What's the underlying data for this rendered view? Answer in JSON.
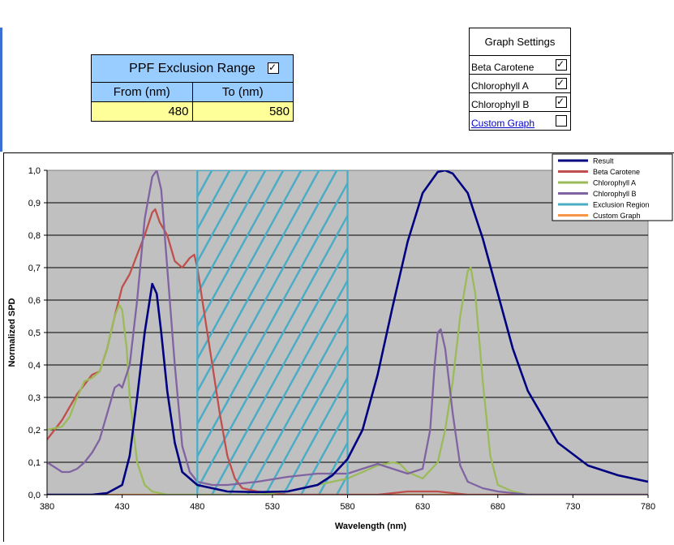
{
  "ppf": {
    "title": "PPF Exclusion Range",
    "enabled": true,
    "from_label": "From (nm)",
    "to_label": "To (nm)",
    "from_value": "480",
    "to_value": "580"
  },
  "graph_settings": {
    "title": "Graph Settings",
    "items": [
      {
        "label": "Beta Carotene",
        "checked": true
      },
      {
        "label": "Chlorophyll A",
        "checked": true
      },
      {
        "label": "Chlorophyll B",
        "checked": true
      },
      {
        "label": "Custom Graph",
        "checked": false
      }
    ]
  },
  "chart_data": {
    "type": "line",
    "xlabel": "Wavelength (nm)",
    "ylabel": "Normalized SPD",
    "xlim": [
      380,
      780
    ],
    "ylim": [
      0,
      1
    ],
    "xticks": [
      "380",
      "430",
      "480",
      "530",
      "580",
      "630",
      "680",
      "730",
      "780"
    ],
    "yticks": [
      "0,0",
      "0,1",
      "0,2",
      "0,3",
      "0,4",
      "0,5",
      "0,6",
      "0,7",
      "0,8",
      "0,9",
      "1,0"
    ],
    "grid": true,
    "legend_position": "top-right",
    "exclusion_range": [
      480,
      580
    ],
    "series": [
      {
        "name": "Result",
        "color": "#000080",
        "x": [
          380,
          410,
          420,
          430,
          435,
          440,
          445,
          450,
          453,
          456,
          460,
          465,
          470,
          480,
          490,
          500,
          520,
          540,
          560,
          570,
          580,
          590,
          600,
          610,
          620,
          630,
          640,
          645,
          650,
          660,
          670,
          680,
          690,
          700,
          720,
          740,
          760,
          780
        ],
        "y": [
          0,
          0,
          0.005,
          0.03,
          0.12,
          0.3,
          0.5,
          0.65,
          0.62,
          0.5,
          0.32,
          0.16,
          0.07,
          0.03,
          0.02,
          0.01,
          0.008,
          0.01,
          0.03,
          0.06,
          0.11,
          0.2,
          0.37,
          0.58,
          0.78,
          0.93,
          0.995,
          1.0,
          0.99,
          0.93,
          0.79,
          0.62,
          0.45,
          0.32,
          0.16,
          0.09,
          0.06,
          0.04
        ]
      },
      {
        "name": "Beta Carotene",
        "color": "#c0504d",
        "x": [
          380,
          385,
          390,
          395,
          400,
          405,
          410,
          415,
          420,
          425,
          430,
          435,
          440,
          445,
          450,
          452,
          455,
          460,
          465,
          470,
          475,
          478,
          480,
          485,
          490,
          495,
          500,
          505,
          510,
          520,
          540,
          560,
          580,
          600,
          620,
          640,
          660,
          700,
          780
        ],
        "y": [
          0.17,
          0.2,
          0.23,
          0.27,
          0.31,
          0.34,
          0.37,
          0.38,
          0.45,
          0.55,
          0.64,
          0.68,
          0.74,
          0.8,
          0.87,
          0.88,
          0.84,
          0.8,
          0.72,
          0.7,
          0.73,
          0.74,
          0.7,
          0.55,
          0.4,
          0.25,
          0.12,
          0.05,
          0.02,
          0.01,
          0.0,
          0.0,
          0.0,
          0.0,
          0.01,
          0.01,
          0.0,
          0.0,
          0.0
        ]
      },
      {
        "name": "Chlorophyll A",
        "color": "#9bbb59",
        "x": [
          380,
          390,
          395,
          400,
          405,
          410,
          415,
          420,
          425,
          428,
          430,
          433,
          435,
          440,
          445,
          450,
          460,
          480,
          500,
          520,
          540,
          560,
          580,
          590,
          600,
          610,
          615,
          620,
          630,
          640,
          645,
          650,
          655,
          660,
          662,
          665,
          670,
          675,
          680,
          690,
          700,
          780
        ],
        "y": [
          0.2,
          0.21,
          0.24,
          0.3,
          0.35,
          0.36,
          0.38,
          0.45,
          0.55,
          0.585,
          0.57,
          0.45,
          0.3,
          0.1,
          0.03,
          0.01,
          0.0,
          0.0,
          0.0,
          0.0,
          0.01,
          0.03,
          0.05,
          0.07,
          0.09,
          0.1,
          0.095,
          0.07,
          0.05,
          0.1,
          0.2,
          0.35,
          0.55,
          0.69,
          0.7,
          0.62,
          0.35,
          0.12,
          0.03,
          0.01,
          0.0,
          0.0
        ]
      },
      {
        "name": "Chlorophyll B",
        "color": "#8064a2",
        "x": [
          380,
          385,
          390,
          395,
          400,
          405,
          410,
          415,
          420,
          425,
          428,
          430,
          435,
          440,
          445,
          450,
          453,
          456,
          460,
          465,
          470,
          475,
          480,
          490,
          500,
          520,
          540,
          560,
          580,
          590,
          600,
          610,
          620,
          630,
          635,
          638,
          640,
          642,
          645,
          650,
          655,
          660,
          670,
          680,
          700,
          780
        ],
        "y": [
          0.1,
          0.085,
          0.07,
          0.07,
          0.08,
          0.1,
          0.13,
          0.17,
          0.25,
          0.33,
          0.34,
          0.33,
          0.4,
          0.6,
          0.85,
          0.98,
          1.0,
          0.94,
          0.7,
          0.4,
          0.15,
          0.07,
          0.04,
          0.03,
          0.03,
          0.04,
          0.055,
          0.065,
          0.065,
          0.08,
          0.095,
          0.08,
          0.065,
          0.08,
          0.2,
          0.4,
          0.5,
          0.51,
          0.45,
          0.25,
          0.09,
          0.04,
          0.02,
          0.01,
          0.0,
          0.0
        ]
      },
      {
        "name": "Exclusion Region",
        "color": "#4bacc6",
        "x": [
          480,
          480,
          580,
          580
        ],
        "y": [
          0,
          1,
          1,
          0
        ]
      },
      {
        "name": "Custom Graph",
        "color": "#f79646",
        "x": [
          380,
          780
        ],
        "y": [
          0,
          0
        ]
      }
    ]
  }
}
